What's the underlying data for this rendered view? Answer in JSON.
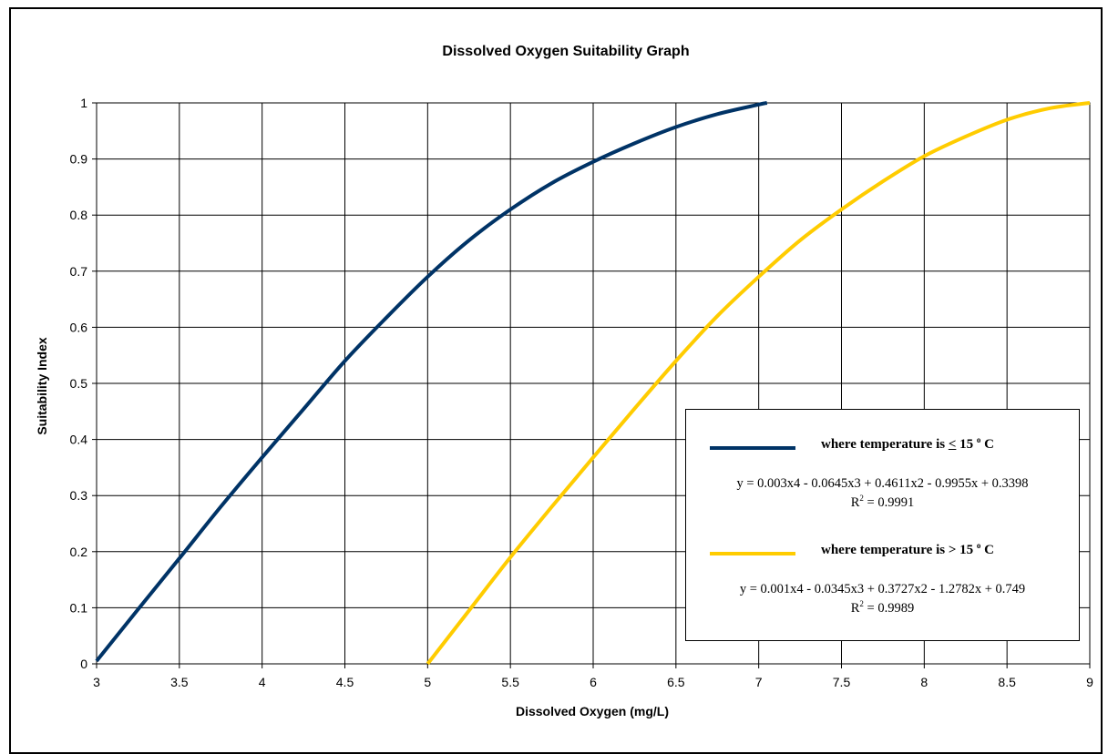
{
  "chart_data": {
    "type": "line",
    "title": "Dissolved Oxygen Suitability Graph",
    "xlabel": "Dissolved Oxygen (mg/L)",
    "ylabel": "Suitability Index",
    "xlim": [
      3,
      9
    ],
    "ylim": [
      0,
      1
    ],
    "x_ticks": [
      "3",
      "3.5",
      "4",
      "4.5",
      "5",
      "5.5",
      "6",
      "6.5",
      "7",
      "7.5",
      "8",
      "8.5",
      "9"
    ],
    "y_ticks": [
      "0",
      "0.1",
      "0.2",
      "0.3",
      "0.4",
      "0.5",
      "0.6",
      "0.7",
      "0.8",
      "0.9",
      "1"
    ],
    "grid": true,
    "legend_position": "bottom-right",
    "series": [
      {
        "label_prefix": "where temperature is",
        "label_operator": "<",
        "label_value": "15",
        "label_degree": "o",
        "label_unit": "C",
        "color": "#003366",
        "equation": "y = 0.003x4 - 0.0645x3 + 0.4611x2 - 0.9955x + 0.3398",
        "r2_label": "R",
        "r2_exp": "2",
        "r2_value": " = 0.9991",
        "x": [
          3,
          3.25,
          3.5,
          3.75,
          4,
          4.25,
          4.5,
          4.75,
          5,
          5.25,
          5.5,
          5.75,
          6,
          6.25,
          6.5,
          6.75,
          7,
          7.05
        ],
        "y": [
          0.005,
          0.097,
          0.188,
          0.28,
          0.368,
          0.454,
          0.54,
          0.617,
          0.69,
          0.755,
          0.81,
          0.857,
          0.895,
          0.928,
          0.957,
          0.98,
          0.997,
          1.0
        ]
      },
      {
        "label_prefix": "where temperature is",
        "label_operator": ">",
        "label_value": "15",
        "label_degree": "o",
        "label_unit": "C",
        "color": "#FFCC00",
        "equation": "y = 0.001x4 - 0.0345x3 + 0.3727x2 - 1.2782x + 0.749",
        "r2_label": "R",
        "r2_exp": "2",
        "r2_value": " = 0.9989",
        "x": [
          5,
          5.25,
          5.5,
          5.75,
          6,
          6.25,
          6.5,
          6.75,
          7,
          7.25,
          7.5,
          7.75,
          8,
          8.25,
          8.5,
          8.75,
          9
        ],
        "y": [
          0.0,
          0.095,
          0.19,
          0.28,
          0.368,
          0.455,
          0.54,
          0.62,
          0.69,
          0.755,
          0.81,
          0.86,
          0.905,
          0.94,
          0.97,
          0.99,
          1.0
        ]
      }
    ]
  }
}
